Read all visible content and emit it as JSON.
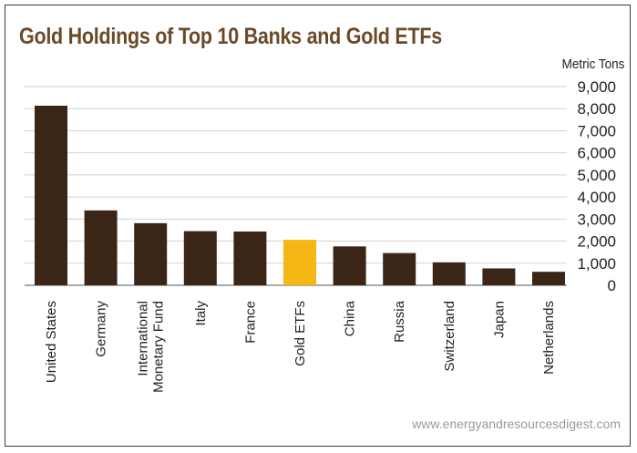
{
  "chart_data": {
    "type": "bar",
    "title": "Gold Holdings of Top 10 Banks and Gold ETFs",
    "ylabel": "Metric Tons",
    "xlabel": "",
    "source": "www.energyandresourcesdigest.com",
    "ylim": [
      0,
      9000
    ],
    "yticks": [
      "0",
      "1,000",
      "2,000",
      "3,000",
      "4,000",
      "5,000",
      "6,000",
      "7,000",
      "8,000",
      "9,000"
    ],
    "grid": true,
    "categories": [
      "United States",
      "Germany",
      "International Monetary Fund",
      "Italy",
      "France",
      "Gold ETFs",
      "China",
      "Russia",
      "Switzerland",
      "Japan",
      "Netherlands"
    ],
    "category_lines": [
      [
        "United States"
      ],
      [
        "Germany"
      ],
      [
        "International",
        "Monetary Fund"
      ],
      [
        "Italy"
      ],
      [
        "France"
      ],
      [
        "Gold ETFs"
      ],
      [
        "China"
      ],
      [
        "Russia"
      ],
      [
        "Switzerland"
      ],
      [
        "Japan"
      ],
      [
        "Netherlands"
      ]
    ],
    "values": [
      8134,
      3391,
      2814,
      2452,
      2435,
      2060,
      1762,
      1460,
      1040,
      765,
      612
    ],
    "colors": {
      "bar": "#3a2516",
      "highlight": "#f5b716",
      "highlight_category": "Gold ETFs",
      "title": "#6b4a2a",
      "grid": "#d2d2d2"
    }
  }
}
